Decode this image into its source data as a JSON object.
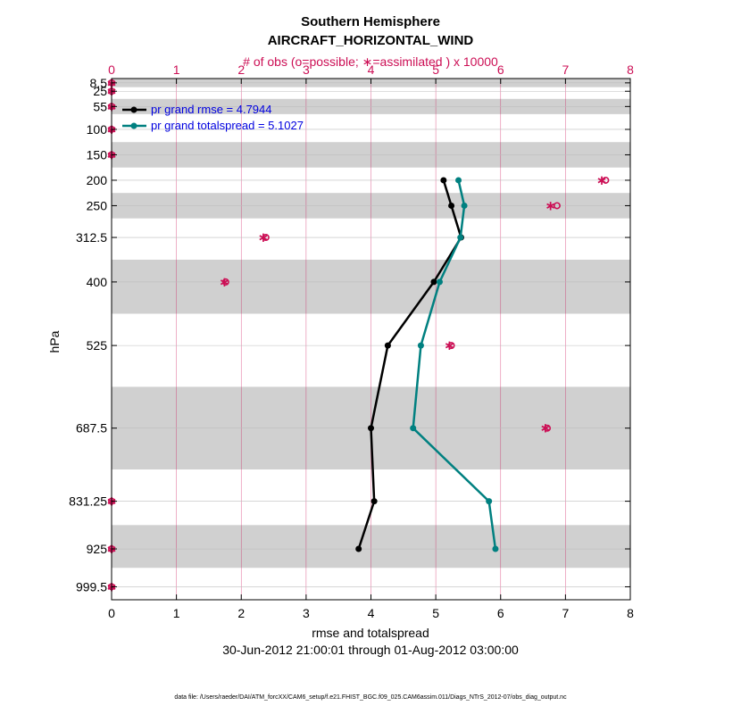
{
  "chart_data": {
    "type": "line",
    "title": "Southern Hemisphere",
    "subtitle": "AIRCRAFT_HORIZONTAL_WIND",
    "top_axis_label": "# of obs (o=possible; ∗=assimilated ) x 10000",
    "xlabel": "rmse and totalspread",
    "ylabel": "hPa",
    "date_range": "30-Jun-2012 21:00:01 through 01-Aug-2012 03:00:00",
    "footer": "data file: /Users/raeder/DAI/ATM_forcXX/CAM6_setup/f.e21.FHIST_BGC.f09_025.CAM6assim.011/Diags_NTrS_2012-07/obs_diag_output.nc",
    "xlim": [
      0,
      8
    ],
    "x_ticks": [
      "0",
      "1",
      "2",
      "3",
      "4",
      "5",
      "6",
      "7",
      "8"
    ],
    "top_xlim": [
      0,
      8
    ],
    "top_ticks": [
      "0",
      "1",
      "2",
      "3",
      "4",
      "5",
      "6",
      "7",
      "8"
    ],
    "ylim": [
      1025,
      0
    ],
    "levels": [
      8.5,
      25,
      55,
      100,
      150,
      200,
      250,
      312.5,
      400,
      525,
      687.5,
      831.25,
      925,
      999.5
    ],
    "level_labels": [
      "8.5",
      "25",
      "55",
      "100",
      "150",
      "200",
      "250",
      "312.5",
      "400",
      "525",
      "687.5",
      "831.25",
      "925",
      "999.5"
    ],
    "shaded_bands": [
      [
        0,
        17
      ],
      [
        40,
        70
      ],
      [
        125,
        175
      ],
      [
        225,
        275
      ],
      [
        356.25,
        462.5
      ],
      [
        606.25,
        768.75
      ],
      [
        878.125,
        962.25
      ]
    ],
    "series": [
      {
        "name": "pr grand rmse",
        "legend": "pr grand rmse = 4.7944",
        "color": "#000000",
        "levels": [
          200,
          250,
          312.5,
          400,
          525,
          687.5,
          831.25,
          925
        ],
        "values": [
          5.12,
          5.24,
          5.39,
          4.97,
          4.26,
          4.0,
          4.05,
          3.81
        ]
      },
      {
        "name": "pr grand totalspread",
        "legend": "pr grand totalspread = 5.1027",
        "color": "#008080",
        "levels": [
          200,
          250,
          312.5,
          400,
          525,
          687.5,
          831.25,
          925
        ],
        "values": [
          5.35,
          5.44,
          5.38,
          5.06,
          4.77,
          4.65,
          5.82,
          5.92
        ]
      }
    ],
    "obs_counts": {
      "color": "#cc0f55",
      "levels": [
        8.5,
        25,
        55,
        100,
        150,
        200,
        250,
        312.5,
        400,
        525,
        687.5,
        831.25,
        925,
        999.5
      ],
      "possible": [
        0,
        0,
        0,
        0,
        0,
        7.62,
        6.87,
        2.38,
        1.76,
        5.24,
        6.72,
        0,
        0,
        0
      ],
      "assimilated": [
        0,
        0,
        0,
        0,
        0,
        7.56,
        6.77,
        2.34,
        1.74,
        5.21,
        6.69,
        0,
        0,
        0
      ]
    }
  }
}
